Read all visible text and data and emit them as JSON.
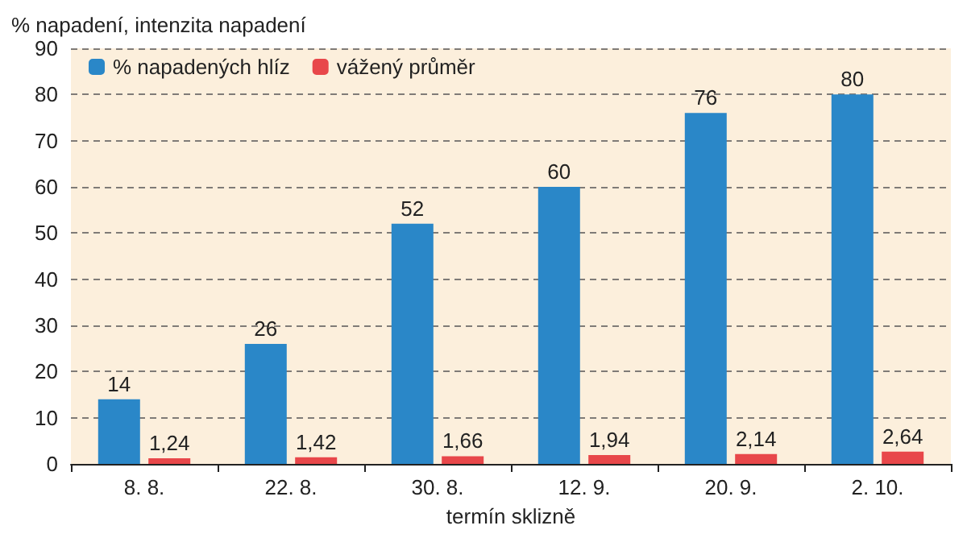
{
  "chart_data": {
    "type": "bar",
    "ylabel": "% napadení, intenzita napadení",
    "xlabel": "termín sklizně",
    "categories": [
      "8. 8.",
      "22. 8.",
      "30. 8.",
      "12. 9.",
      "20. 9.",
      "2. 10."
    ],
    "series": [
      {
        "name": "% napadených hlíz",
        "color": "#2a87c8",
        "values": [
          14,
          26,
          52,
          60,
          76,
          80
        ],
        "value_labels": [
          "14",
          "26",
          "52",
          "60",
          "76",
          "80"
        ]
      },
      {
        "name": "vážený průměr",
        "color": "#e8474a",
        "values": [
          1.24,
          1.42,
          1.66,
          1.94,
          2.14,
          2.64
        ],
        "value_labels": [
          "1,24",
          "1,42",
          "1,66",
          "1,94",
          "2,14",
          "2,64"
        ]
      }
    ],
    "ylim": [
      0,
      90
    ],
    "yticks": [
      0,
      10,
      20,
      30,
      40,
      50,
      60,
      70,
      80,
      90
    ],
    "grid": "y",
    "legend": "top left"
  }
}
